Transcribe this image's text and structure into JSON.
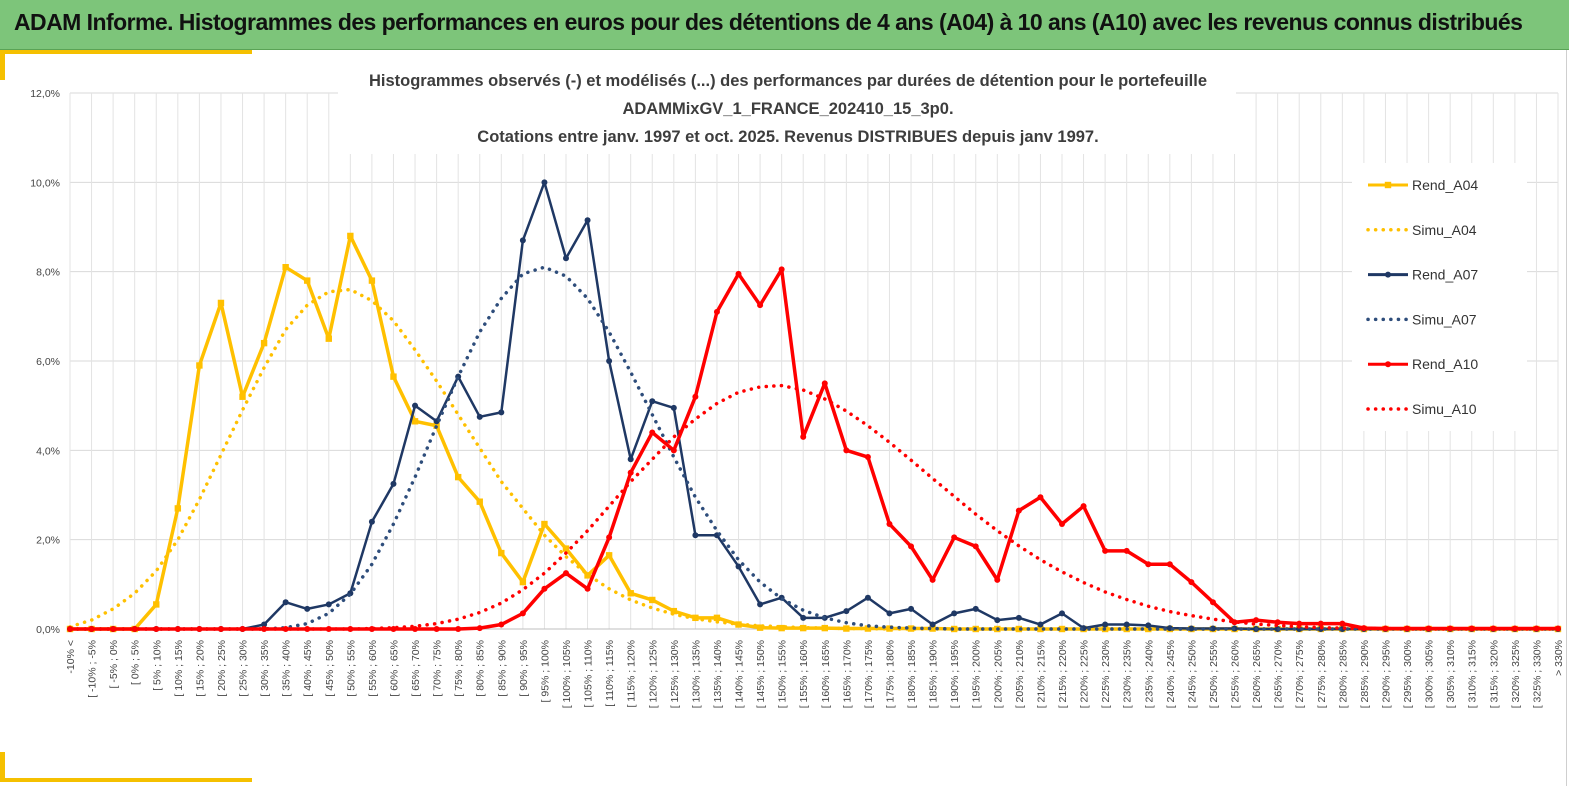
{
  "header": {
    "title": "ADAM Informe. Histogrammes des performances en euros pour des détentions de 4 ans (A04) à 10 ans (A10) avec les revenus connus distribués"
  },
  "chart_data": {
    "type": "line",
    "title_lines": [
      "Histogrammes observés (-) et modélisés (...) des performances par durées de détention pour le portefeuille",
      "ADAMMixGV_1_FRANCE_202410_15_3p0.",
      "Cotations entre janv. 1997 et oct. 2025. Revenus DISTRIBUES depuis janv 1997."
    ],
    "xlabel": "",
    "ylabel": "",
    "ylim": [
      0,
      12
    ],
    "yticks": [
      "0,0%",
      "2,0%",
      "4,0%",
      "6,0%",
      "8,0%",
      "10,0%",
      "12,0%"
    ],
    "grid": true,
    "legend_position": "right",
    "categories": [
      "-10% <",
      "[ -10% ; -5%",
      "[ -5% ; 0%",
      "[ 0% ; 5%",
      "[ 5% ; 10%",
      "[ 10% ; 15%",
      "[ 15% ; 20%",
      "[ 20% ; 25%",
      "[ 25% ; 30%",
      "[ 30% ; 35%",
      "[ 35% ; 40%",
      "[ 40% ; 45%",
      "[ 45% ; 50%",
      "[ 50% ; 55%",
      "[ 55% ; 60%",
      "[ 60% ; 65%",
      "[ 65% ; 70%",
      "[ 70% ; 75%",
      "[ 75% ; 80%",
      "[ 80% ; 85%",
      "[ 85% ; 90%",
      "[ 90% ; 95%",
      "[ 95% ; 100%",
      "[ 100% ; 105%",
      "[ 105% ; 110%",
      "[ 110% ; 115%",
      "[ 115% ; 120%",
      "[ 120% ; 125%",
      "[ 125% ; 130%",
      "[ 130% ; 135%",
      "[ 135% ; 140%",
      "[ 140% ; 145%",
      "[ 145% ; 150%",
      "[ 150% ; 155%",
      "[ 155% ; 160%",
      "[ 160% ; 165%",
      "[ 165% ; 170%",
      "[ 170% ; 175%",
      "[ 175% ; 180%",
      "[ 180% ; 185%",
      "[ 185% ; 190%",
      "[ 190% ; 195%",
      "[ 195% ; 200%",
      "[ 200% ; 205%",
      "[ 205% ; 210%",
      "[ 210% ; 215%",
      "[ 215% ; 220%",
      "[ 220% ; 225%",
      "[ 225% ; 230%",
      "[ 230% ; 235%",
      "[ 235% ; 240%",
      "[ 240% ; 245%",
      "[ 245% ; 250%",
      "[ 250% ; 255%",
      "[ 255% ; 260%",
      "[ 260% ; 265%",
      "[ 265% ; 270%",
      "[ 270% ; 275%",
      "[ 275% ; 280%",
      "[ 280% ; 285%",
      "[ 285% ; 290%",
      "[ 290% ; 295%",
      "[ 295% ; 300%",
      "[ 300% ; 305%",
      "[ 305% ; 310%",
      "[ 310% ; 315%",
      "[ 315% ; 320%",
      "[ 320% ; 325%",
      "[ 325% ; 330%",
      "> 330%"
    ],
    "series": [
      {
        "name": "Rend_A04",
        "color": "#FFC000",
        "style": "solid",
        "markers": true,
        "values": [
          0,
          0,
          0,
          0,
          0.55,
          2.7,
          5.9,
          7.3,
          5.2,
          6.4,
          8.1,
          7.8,
          6.5,
          8.8,
          7.8,
          5.65,
          4.65,
          4.55,
          3.4,
          2.85,
          1.7,
          1.05,
          2.35,
          1.8,
          1.2,
          1.65,
          0.8,
          0.65,
          0.4,
          0.25,
          0.25,
          0.1,
          0.03,
          0.02,
          0.02,
          0.02,
          0.01,
          0.01,
          0.01,
          0.01,
          0.01,
          0,
          0,
          0,
          0,
          0,
          0,
          0,
          0,
          0,
          0,
          0,
          0,
          0,
          0,
          0,
          0,
          0,
          0,
          0,
          0,
          0,
          0,
          0,
          0,
          0,
          0,
          0,
          0,
          0
        ]
      },
      {
        "name": "Simu_A04",
        "color": "#FFC000",
        "style": "dotted",
        "markers": false,
        "values": [
          0.05,
          0.2,
          0.45,
          0.8,
          1.3,
          2.0,
          2.9,
          3.9,
          4.9,
          5.85,
          6.7,
          7.25,
          7.55,
          7.6,
          7.35,
          6.9,
          6.25,
          5.55,
          4.8,
          4.05,
          3.3,
          2.7,
          2.1,
          1.62,
          1.22,
          0.9,
          0.65,
          0.47,
          0.33,
          0.23,
          0.16,
          0.11,
          0.07,
          0.05,
          0.03,
          0.02,
          0.01,
          0.01,
          0,
          0,
          0,
          0,
          0,
          0,
          0,
          0,
          0,
          0,
          0,
          0,
          0,
          0,
          0,
          0,
          0,
          0,
          0,
          0,
          0,
          0,
          0,
          0,
          0,
          0,
          0,
          0,
          0,
          0,
          0,
          0
        ]
      },
      {
        "name": "Rend_A07",
        "color": "#1F3864",
        "style": "solid",
        "markers": true,
        "values": [
          0,
          0,
          0,
          0,
          0,
          0,
          0,
          0,
          0,
          0.1,
          0.6,
          0.45,
          0.55,
          0.8,
          2.4,
          3.25,
          5.0,
          4.65,
          5.65,
          4.75,
          4.85,
          8.7,
          10.0,
          8.3,
          9.15,
          6.0,
          3.8,
          5.1,
          4.95,
          2.1,
          2.1,
          1.4,
          0.55,
          0.7,
          0.25,
          0.25,
          0.4,
          0.7,
          0.35,
          0.45,
          0.1,
          0.35,
          0.45,
          0.2,
          0.25,
          0.1,
          0.35,
          0.02,
          0.1,
          0.1,
          0.08,
          0.02,
          0.01,
          0.01,
          0.01,
          0,
          0,
          0,
          0,
          0,
          0,
          0,
          0,
          0,
          0,
          0,
          0,
          0,
          0,
          0
        ]
      },
      {
        "name": "Simu_A07",
        "color": "#2E4D7B",
        "style": "dotted",
        "markers": false,
        "values": [
          0,
          0,
          0,
          0,
          0,
          0,
          0,
          0,
          0,
          0,
          0.03,
          0.12,
          0.35,
          0.78,
          1.45,
          2.35,
          3.4,
          4.55,
          5.65,
          6.65,
          7.4,
          7.95,
          8.1,
          7.9,
          7.4,
          6.65,
          5.75,
          4.8,
          3.85,
          2.95,
          2.2,
          1.55,
          1.05,
          0.68,
          0.42,
          0.25,
          0.14,
          0.07,
          0.04,
          0.02,
          0.01,
          0,
          0,
          0,
          0,
          0,
          0,
          0,
          0,
          0,
          0,
          0,
          0,
          0,
          0,
          0,
          0,
          0,
          0,
          0,
          0,
          0,
          0,
          0,
          0,
          0,
          0,
          0,
          0,
          0
        ]
      },
      {
        "name": "Rend_A10",
        "color": "#FF0000",
        "style": "solid",
        "markers": true,
        "values": [
          0,
          0,
          0,
          0,
          0,
          0,
          0,
          0,
          0,
          0,
          0,
          0,
          0,
          0,
          0,
          0,
          0,
          0,
          0,
          0.02,
          0.1,
          0.35,
          0.9,
          1.25,
          0.9,
          2.05,
          3.5,
          4.4,
          4.0,
          5.2,
          7.1,
          7.95,
          7.25,
          8.05,
          4.3,
          5.5,
          4.0,
          3.85,
          2.35,
          1.85,
          1.1,
          2.05,
          1.85,
          1.1,
          2.65,
          2.95,
          2.35,
          2.75,
          1.75,
          1.75,
          1.45,
          1.45,
          1.05,
          0.6,
          0.15,
          0.2,
          0.15,
          0.12,
          0.12,
          0.12,
          0.02,
          0.01,
          0.01,
          0.01,
          0.01,
          0.01,
          0.01,
          0.01,
          0.01,
          0.01
        ]
      },
      {
        "name": "Simu_A10",
        "color": "#FF0000",
        "style": "dotted",
        "markers": false,
        "values": [
          0,
          0,
          0,
          0,
          0,
          0,
          0,
          0,
          0,
          0,
          0,
          0,
          0,
          0,
          0.01,
          0.03,
          0.06,
          0.12,
          0.22,
          0.37,
          0.58,
          0.88,
          1.25,
          1.7,
          2.2,
          2.75,
          3.3,
          3.8,
          4.3,
          4.7,
          5.05,
          5.3,
          5.42,
          5.45,
          5.35,
          5.15,
          4.88,
          4.55,
          4.18,
          3.78,
          3.37,
          2.97,
          2.57,
          2.2,
          1.86,
          1.55,
          1.28,
          1.04,
          0.83,
          0.66,
          0.51,
          0.39,
          0.3,
          0.22,
          0.16,
          0.11,
          0.08,
          0.05,
          0.03,
          0.02,
          0.01,
          0.01,
          0,
          0,
          0,
          0,
          0,
          0,
          0,
          0
        ]
      }
    ]
  }
}
